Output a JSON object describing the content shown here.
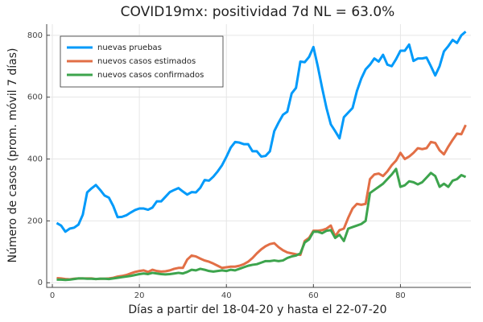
{
  "chart_data": {
    "type": "line",
    "title": "COVID19mx: positividad 7d NL = 63.0%",
    "x_label": "Días a partir del 18-04-20 y hasta el 22-07-20",
    "y_label": "Número de casos (prom. móvil 7 días)",
    "x": [
      1,
      2,
      3,
      4,
      5,
      6,
      7,
      8,
      9,
      10,
      11,
      12,
      13,
      14,
      15,
      16,
      17,
      18,
      19,
      20,
      21,
      22,
      23,
      24,
      25,
      26,
      27,
      28,
      29,
      30,
      31,
      32,
      33,
      34,
      35,
      36,
      37,
      38,
      39,
      40,
      41,
      42,
      43,
      44,
      45,
      46,
      47,
      48,
      49,
      50,
      51,
      52,
      53,
      54,
      55,
      56,
      57,
      58,
      59,
      60,
      61,
      62,
      63,
      64,
      65,
      66,
      67,
      68,
      69,
      70,
      71,
      72,
      73,
      74,
      75,
      76,
      77,
      78,
      79,
      80,
      81,
      82,
      83,
      84,
      85,
      86,
      87,
      88,
      89,
      90,
      91,
      92,
      93,
      94,
      95
    ],
    "series": [
      {
        "name": "nuevas pruebas",
        "color": "#009afa",
        "values": [
          193,
          185,
          165,
          175,
          178,
          188,
          220,
          292,
          305,
          316,
          300,
          282,
          275,
          248,
          212,
          213,
          218,
          227,
          235,
          240,
          240,
          236,
          243,
          263,
          263,
          278,
          293,
          300,
          306,
          295,
          285,
          293,
          292,
          307,
          332,
          330,
          343,
          360,
          380,
          407,
          437,
          455,
          453,
          448,
          448,
          425,
          425,
          408,
          410,
          425,
          490,
          518,
          543,
          553,
          612,
          630,
          715,
          713,
          730,
          762,
          700,
          630,
          565,
          512,
          490,
          467,
          535,
          550,
          565,
          620,
          660,
          690,
          705,
          725,
          715,
          737,
          705,
          700,
          723,
          750,
          750,
          770,
          717,
          725,
          725,
          728,
          700,
          670,
          700,
          748,
          765,
          785,
          775,
          800,
          812
        ]
      },
      {
        "name": "nuevos casos estimados",
        "color": "#e26f46",
        "values": [
          15,
          14,
          12,
          11,
          13,
          14,
          14,
          14,
          14,
          12,
          13,
          13,
          14,
          16,
          20,
          22,
          25,
          30,
          35,
          38,
          40,
          35,
          42,
          38,
          36,
          37,
          40,
          45,
          48,
          48,
          75,
          88,
          85,
          78,
          72,
          68,
          62,
          55,
          48,
          50,
          52,
          52,
          55,
          60,
          68,
          80,
          95,
          108,
          118,
          125,
          128,
          115,
          105,
          98,
          95,
          92,
          90,
          135,
          145,
          168,
          168,
          170,
          175,
          185,
          150,
          170,
          175,
          210,
          240,
          255,
          252,
          255,
          335,
          350,
          353,
          345,
          360,
          380,
          395,
          420,
          400,
          408,
          420,
          435,
          432,
          435,
          455,
          452,
          428,
          415,
          440,
          462,
          482,
          480,
          510
        ]
      },
      {
        "name": "nuevos casos confirmados",
        "color": "#3da44d",
        "values": [
          10,
          10,
          9,
          10,
          12,
          14,
          14,
          13,
          13,
          12,
          13,
          13,
          12,
          14,
          16,
          18,
          20,
          22,
          25,
          28,
          30,
          28,
          32,
          30,
          28,
          27,
          28,
          30,
          32,
          30,
          35,
          42,
          40,
          45,
          42,
          38,
          36,
          38,
          40,
          38,
          42,
          40,
          45,
          50,
          55,
          58,
          60,
          65,
          70,
          70,
          72,
          70,
          72,
          80,
          85,
          88,
          95,
          130,
          140,
          165,
          165,
          160,
          168,
          170,
          145,
          155,
          135,
          175,
          180,
          185,
          190,
          200,
          290,
          300,
          310,
          320,
          335,
          350,
          368,
          310,
          315,
          328,
          325,
          318,
          325,
          340,
          355,
          345,
          310,
          320,
          310,
          330,
          335,
          348,
          342
        ]
      }
    ],
    "xlim": [
      -1.3,
      96.2
    ],
    "xticks": [
      0,
      20,
      40,
      60,
      80
    ],
    "ylim": [
      -15,
      836
    ],
    "yticks": [
      0,
      200,
      400,
      600,
      800
    ],
    "grid": true,
    "legend": "top-left"
  }
}
